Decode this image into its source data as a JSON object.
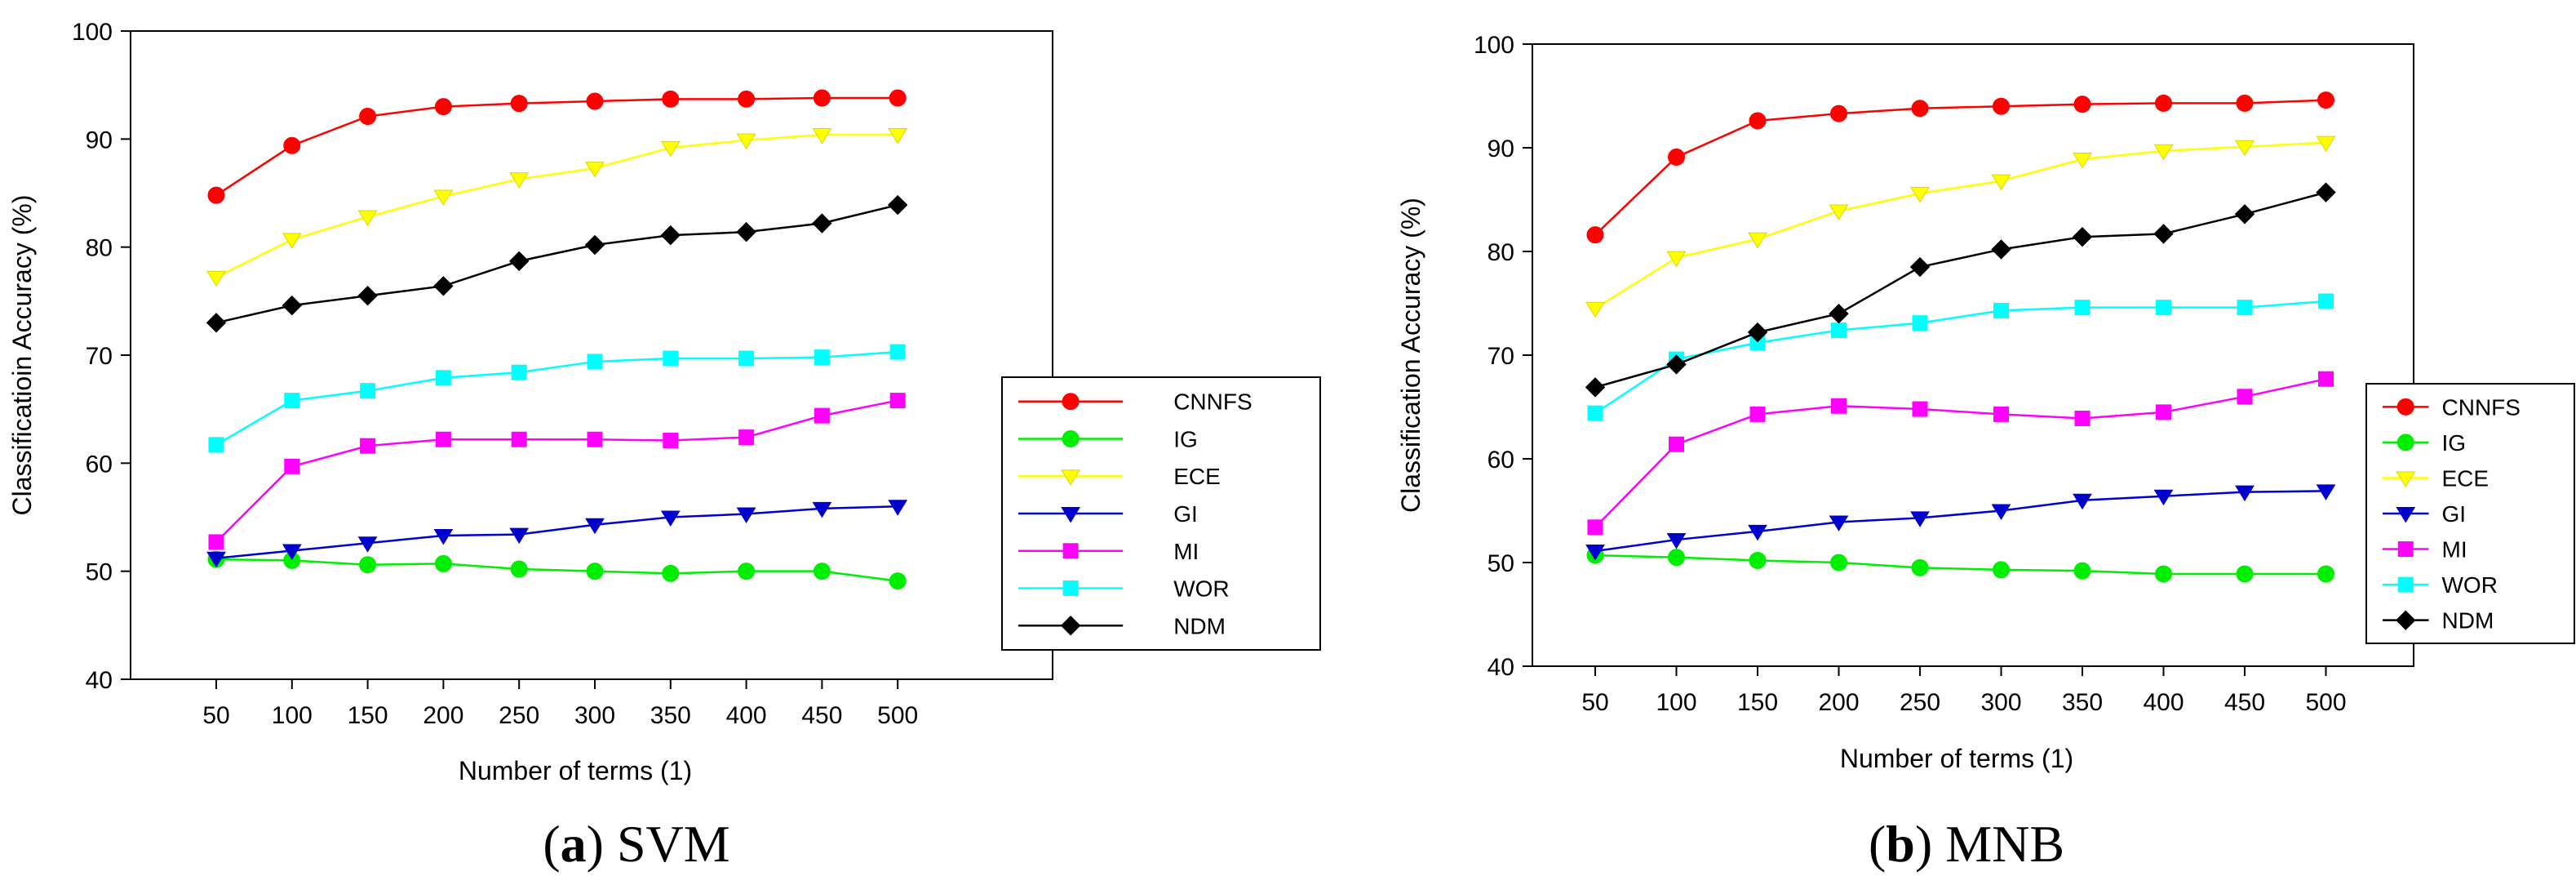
{
  "series_style": [
    {
      "color": "#ff0000",
      "marker": "circle"
    },
    {
      "color": "#00ee00",
      "marker": "circle"
    },
    {
      "color": "#ffff00",
      "marker": "triangle-down"
    },
    {
      "color": "#0000cc",
      "marker": "triangle-down"
    },
    {
      "color": "#ff00ff",
      "marker": "square"
    },
    {
      "color": "#00ffff",
      "marker": "square"
    },
    {
      "color": "#000000",
      "marker": "diamond"
    }
  ],
  "chart_data": [
    {
      "type": "line",
      "caption_letter": "a",
      "caption_text": " SVM",
      "xlabel": "Number of terms (1)",
      "ylabel": "Classificatioin Accuracy (%)",
      "x": [
        50,
        100,
        150,
        200,
        250,
        300,
        350,
        400,
        450,
        500
      ],
      "ylim": [
        40,
        100
      ],
      "yticks": [
        40,
        50,
        60,
        70,
        80,
        90,
        100
      ],
      "legend_position": "right",
      "series": [
        {
          "name": "CNNFS",
          "values": [
            84.8,
            89.4,
            92.1,
            93.0,
            93.3,
            93.5,
            93.7,
            93.7,
            93.8,
            93.8
          ]
        },
        {
          "name": "IG",
          "values": [
            51.1,
            51.0,
            50.6,
            50.7,
            50.2,
            50.0,
            49.8,
            50.0,
            50.0,
            49.1
          ]
        },
        {
          "name": "ECE",
          "values": [
            77.2,
            80.7,
            82.8,
            84.7,
            86.3,
            87.3,
            89.2,
            89.9,
            90.4,
            90.4
          ]
        },
        {
          "name": "GI",
          "values": [
            51.2,
            51.9,
            52.6,
            53.3,
            53.4,
            54.3,
            55.0,
            55.3,
            55.8,
            56.0
          ]
        },
        {
          "name": "MI",
          "values": [
            52.7,
            59.7,
            61.6,
            62.2,
            62.2,
            62.2,
            62.1,
            62.4,
            64.4,
            65.8
          ]
        },
        {
          "name": "WOR",
          "values": [
            61.7,
            65.8,
            66.7,
            67.9,
            68.4,
            69.4,
            69.7,
            69.7,
            69.8,
            70.3
          ]
        },
        {
          "name": "NDM",
          "values": [
            73.0,
            74.6,
            75.5,
            76.4,
            78.7,
            80.2,
            81.1,
            81.4,
            82.2,
            83.9
          ]
        }
      ]
    },
    {
      "type": "line",
      "caption_letter": "b",
      "caption_text": " MNB",
      "xlabel": "Number of terms (1)",
      "ylabel": "Classification Accuracy (%)",
      "x": [
        50,
        100,
        150,
        200,
        250,
        300,
        350,
        400,
        450,
        500
      ],
      "ylim": [
        40,
        100
      ],
      "yticks": [
        40,
        50,
        60,
        70,
        80,
        90,
        100
      ],
      "legend_position": "right",
      "series": [
        {
          "name": "CNNFS",
          "values": [
            81.6,
            89.1,
            92.6,
            93.3,
            93.8,
            94.0,
            94.2,
            94.3,
            94.3,
            94.6
          ]
        },
        {
          "name": "IG",
          "values": [
            50.7,
            50.5,
            50.2,
            50.0,
            49.5,
            49.3,
            49.2,
            48.9,
            48.9,
            48.9
          ]
        },
        {
          "name": "ECE",
          "values": [
            74.5,
            79.4,
            81.2,
            83.9,
            85.6,
            86.8,
            88.9,
            89.7,
            90.1,
            90.5
          ]
        },
        {
          "name": "GI",
          "values": [
            51.1,
            52.2,
            53.0,
            53.9,
            54.3,
            55.0,
            56.0,
            56.4,
            56.8,
            56.9
          ]
        },
        {
          "name": "MI",
          "values": [
            53.4,
            61.4,
            64.3,
            65.1,
            64.8,
            64.3,
            63.9,
            64.5,
            66.0,
            67.7
          ]
        },
        {
          "name": "WOR",
          "values": [
            64.4,
            69.6,
            71.2,
            72.4,
            73.1,
            74.3,
            74.6,
            74.6,
            74.6,
            75.2
          ]
        },
        {
          "name": "NDM",
          "values": [
            66.9,
            69.1,
            72.2,
            74.0,
            78.5,
            80.2,
            81.4,
            81.7,
            83.6,
            85.7
          ]
        }
      ]
    }
  ]
}
